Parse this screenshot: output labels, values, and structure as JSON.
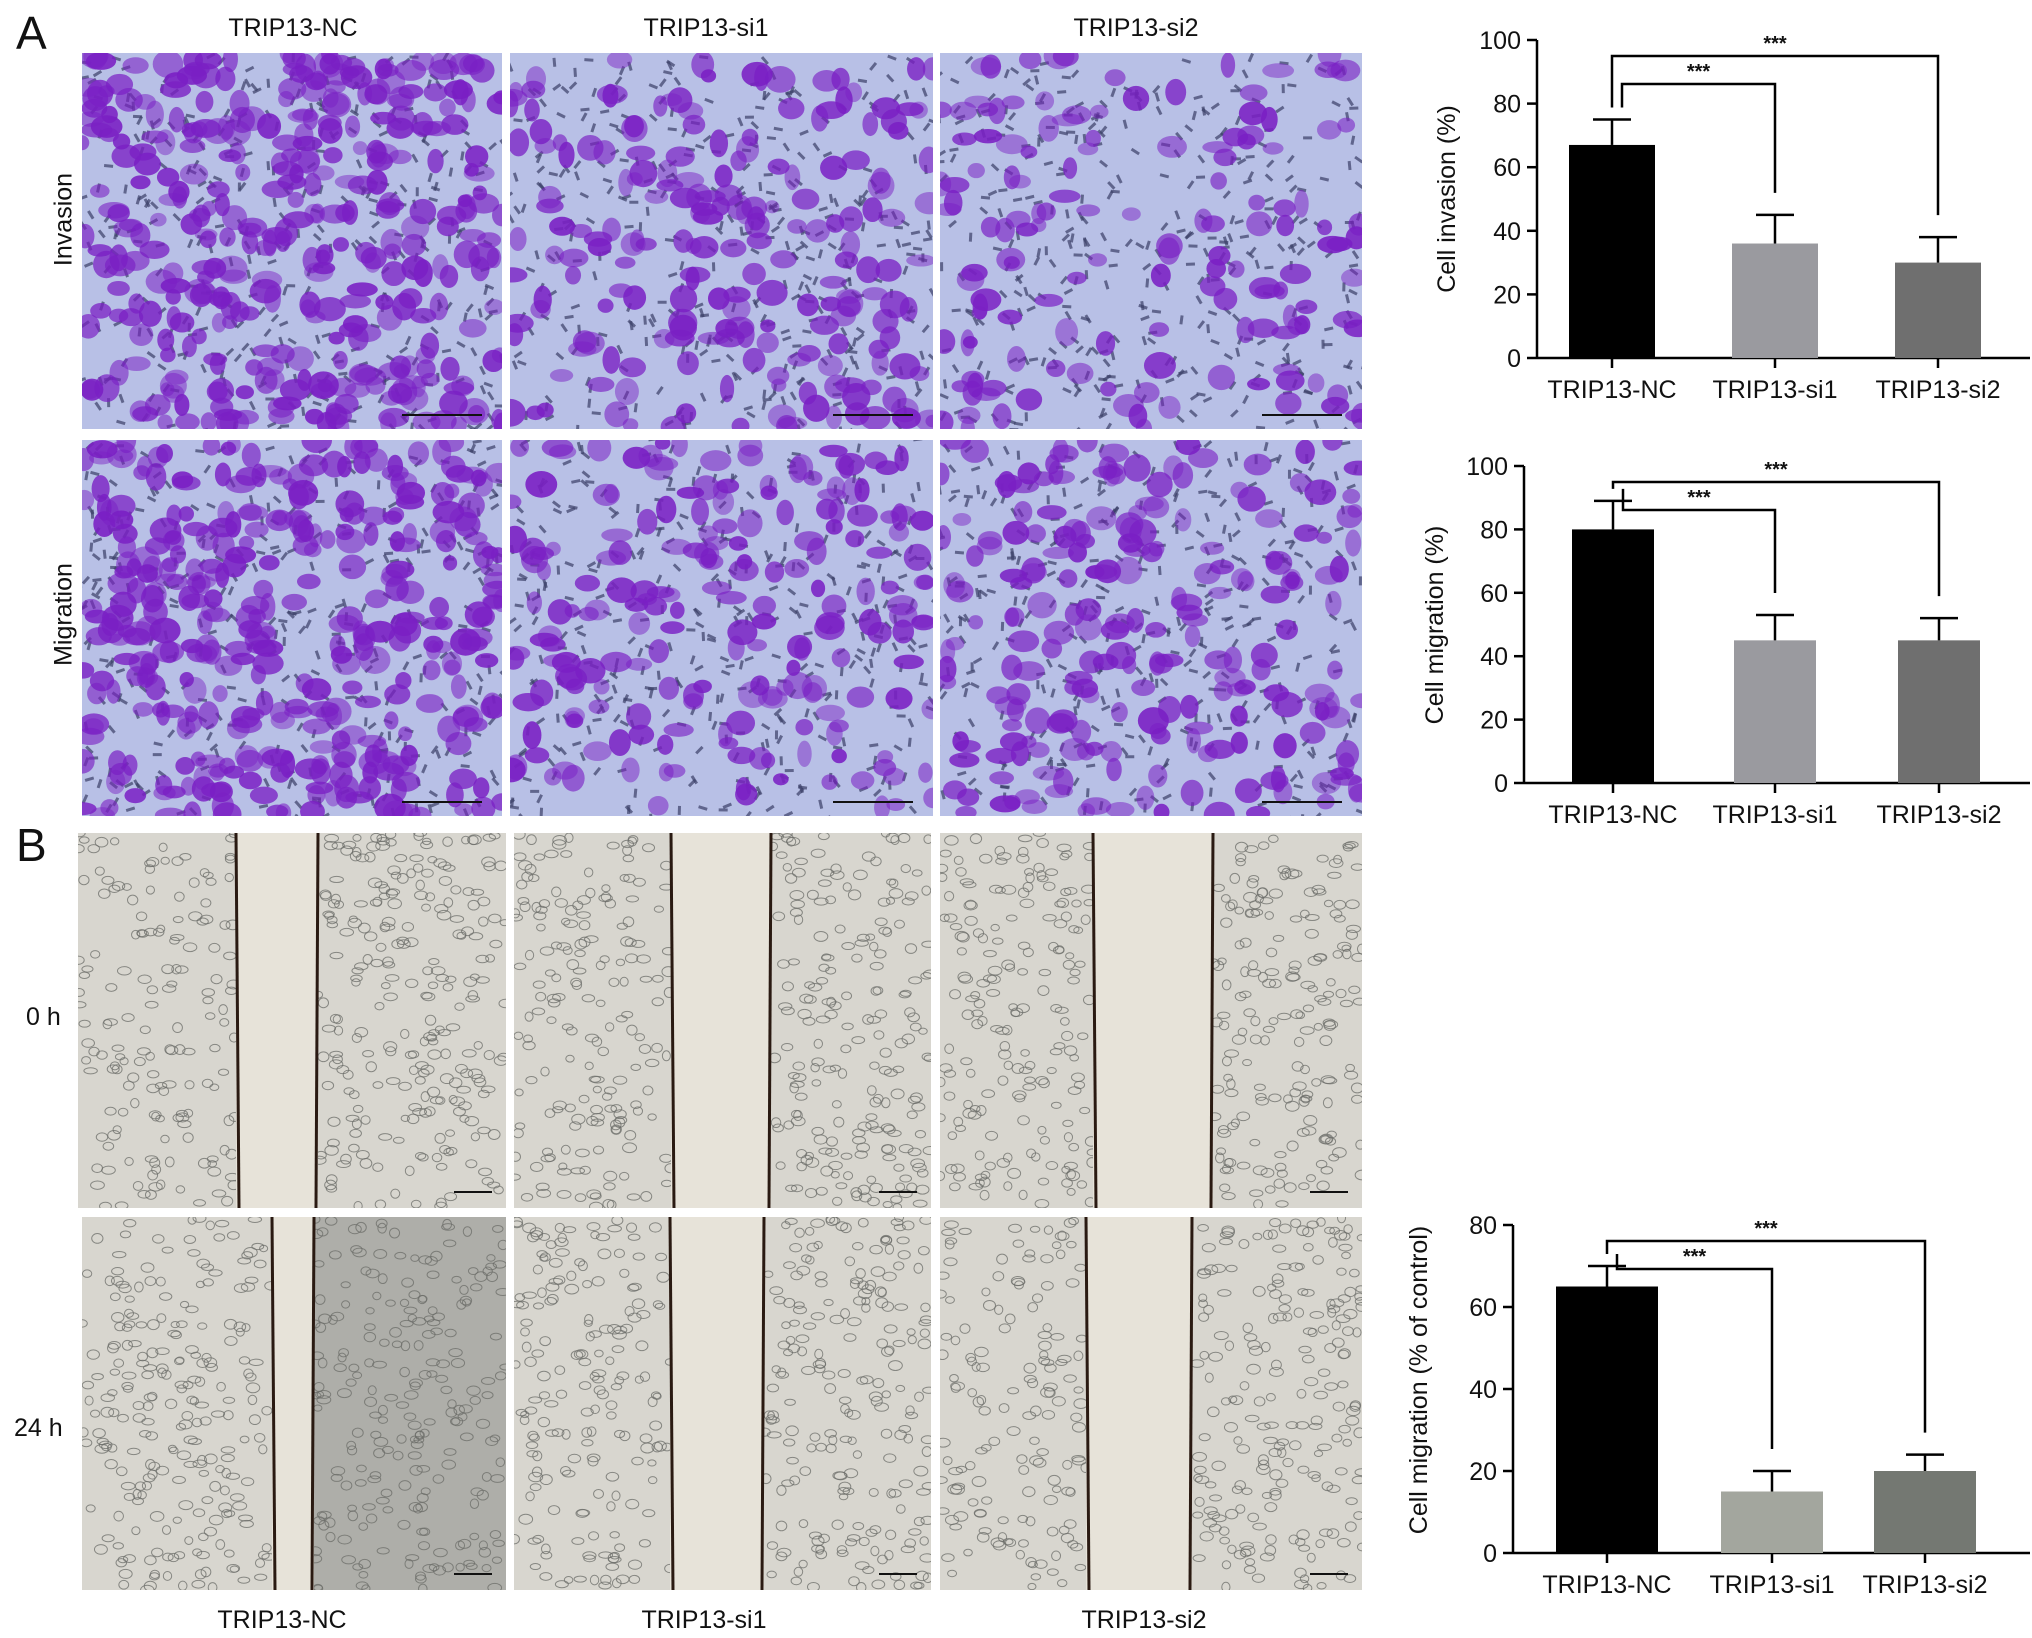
{
  "panels": {
    "a_label": "A",
    "b_label": "B"
  },
  "panel_a": {
    "columns": [
      "TRIP13-NC",
      "TRIP13-si1",
      "TRIP13-si2"
    ],
    "rows": [
      "Invasion",
      "Migration"
    ]
  },
  "panel_b": {
    "columns": [
      "TRIP13-NC",
      "TRIP13-si1",
      "TRIP13-si2"
    ],
    "rows": [
      "0 h",
      "24 h"
    ]
  },
  "colors": {
    "stain_bg": "#b8c0e6",
    "stain_cell": "#7a1fc4",
    "bright_bg": "#d8d6cf",
    "scratch_gap": "#e7e3d9"
  },
  "chart_data": [
    {
      "type": "bar",
      "categories": [
        "TRIP13-NC",
        "TRIP13-si1",
        "TRIP13-si2"
      ],
      "values": [
        67,
        36,
        30
      ],
      "errors": [
        8,
        9,
        8
      ],
      "colors": [
        "#000000",
        "#9a9a9f",
        "#6f6f6f"
      ],
      "xlabel": "",
      "ylabel": "Cell invasion (%)",
      "ylim": [
        0,
        100
      ],
      "yticks": [
        0,
        20,
        40,
        60,
        80,
        100
      ],
      "significance": [
        {
          "from": 0,
          "to": 1,
          "label": "***"
        },
        {
          "from": 0,
          "to": 2,
          "label": "***"
        }
      ]
    },
    {
      "type": "bar",
      "categories": [
        "TRIP13-NC",
        "TRIP13-si1",
        "TRIP13-si2"
      ],
      "values": [
        80,
        45,
        45
      ],
      "errors": [
        9,
        8,
        7
      ],
      "colors": [
        "#000000",
        "#9a9a9f",
        "#6f6f6f"
      ],
      "xlabel": "",
      "ylabel": "Cell migration (%)",
      "ylim": [
        0,
        100
      ],
      "yticks": [
        0,
        20,
        40,
        60,
        80,
        100
      ],
      "significance": [
        {
          "from": 0,
          "to": 1,
          "label": "***"
        },
        {
          "from": 0,
          "to": 2,
          "label": "***"
        }
      ]
    },
    {
      "type": "bar",
      "categories": [
        "TRIP13-NC",
        "TRIP13-si1",
        "TRIP13-si2"
      ],
      "values": [
        65,
        15,
        20
      ],
      "errors": [
        5,
        5,
        4
      ],
      "colors": [
        "#000000",
        "#a3a69e",
        "#747872"
      ],
      "xlabel": "",
      "ylabel": "Cell migration (% of control)",
      "ylim": [
        0,
        80
      ],
      "yticks": [
        0,
        20,
        40,
        60,
        80
      ],
      "significance": [
        {
          "from": 0,
          "to": 1,
          "label": "***"
        },
        {
          "from": 0,
          "to": 2,
          "label": "***"
        }
      ]
    }
  ]
}
